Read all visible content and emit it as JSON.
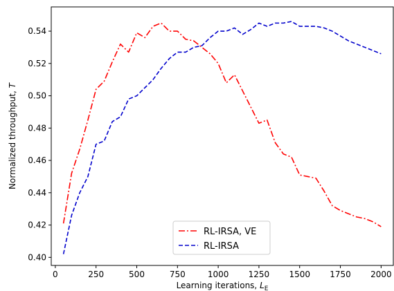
{
  "chart_data": {
    "type": "line",
    "xlabel": "Learning iterations, ",
    "xlabel_symbol": "L",
    "xlabel_subscript": "E",
    "ylabel": "Normalized throughput, ",
    "ylabel_symbol": "T",
    "xlim": [
      -25,
      2075
    ],
    "ylim": [
      0.395,
      0.555
    ],
    "xticks": [
      0,
      250,
      500,
      750,
      1000,
      1250,
      1500,
      1750,
      2000
    ],
    "yticks": [
      0.4,
      0.42,
      0.44,
      0.46,
      0.48,
      0.5,
      0.52,
      0.54
    ],
    "legend_position": "bottom-center",
    "series": [
      {
        "name": "RL-IRSA, VE",
        "color": "#ff0000",
        "style": "dash-dot",
        "x": [
          50,
          100,
          150,
          200,
          250,
          300,
          350,
          400,
          450,
          500,
          550,
          600,
          650,
          700,
          750,
          800,
          850,
          900,
          950,
          1000,
          1050,
          1100,
          1150,
          1200,
          1250,
          1300,
          1350,
          1400,
          1450,
          1500,
          1550,
          1600,
          1650,
          1700,
          1750,
          1800,
          1850,
          1900,
          1950,
          2000
        ],
        "y": [
          0.421,
          0.452,
          0.467,
          0.485,
          0.504,
          0.509,
          0.521,
          0.532,
          0.527,
          0.539,
          0.536,
          0.543,
          0.545,
          0.54,
          0.54,
          0.535,
          0.534,
          0.53,
          0.526,
          0.52,
          0.508,
          0.513,
          0.503,
          0.493,
          0.483,
          0.485,
          0.471,
          0.464,
          0.462,
          0.451,
          0.45,
          0.449,
          0.441,
          0.432,
          0.429,
          0.427,
          0.425,
          0.424,
          0.422,
          0.419
        ]
      },
      {
        "name": "RL-IRSA",
        "color": "#0000cc",
        "style": "dashed",
        "x": [
          50,
          100,
          150,
          200,
          250,
          300,
          350,
          400,
          450,
          500,
          550,
          600,
          650,
          700,
          750,
          800,
          850,
          900,
          950,
          1000,
          1050,
          1100,
          1150,
          1200,
          1250,
          1300,
          1350,
          1400,
          1450,
          1500,
          1550,
          1600,
          1650,
          1700,
          1750,
          1800,
          1850,
          1900,
          1950,
          2000
        ],
        "y": [
          0.402,
          0.426,
          0.44,
          0.45,
          0.47,
          0.472,
          0.484,
          0.487,
          0.498,
          0.5,
          0.505,
          0.51,
          0.517,
          0.523,
          0.527,
          0.527,
          0.53,
          0.531,
          0.536,
          0.54,
          0.54,
          0.542,
          0.538,
          0.541,
          0.545,
          0.543,
          0.545,
          0.545,
          0.546,
          0.543,
          0.543,
          0.543,
          0.542,
          0.54,
          0.537,
          0.534,
          0.532,
          0.53,
          0.528,
          0.526
        ]
      }
    ]
  }
}
